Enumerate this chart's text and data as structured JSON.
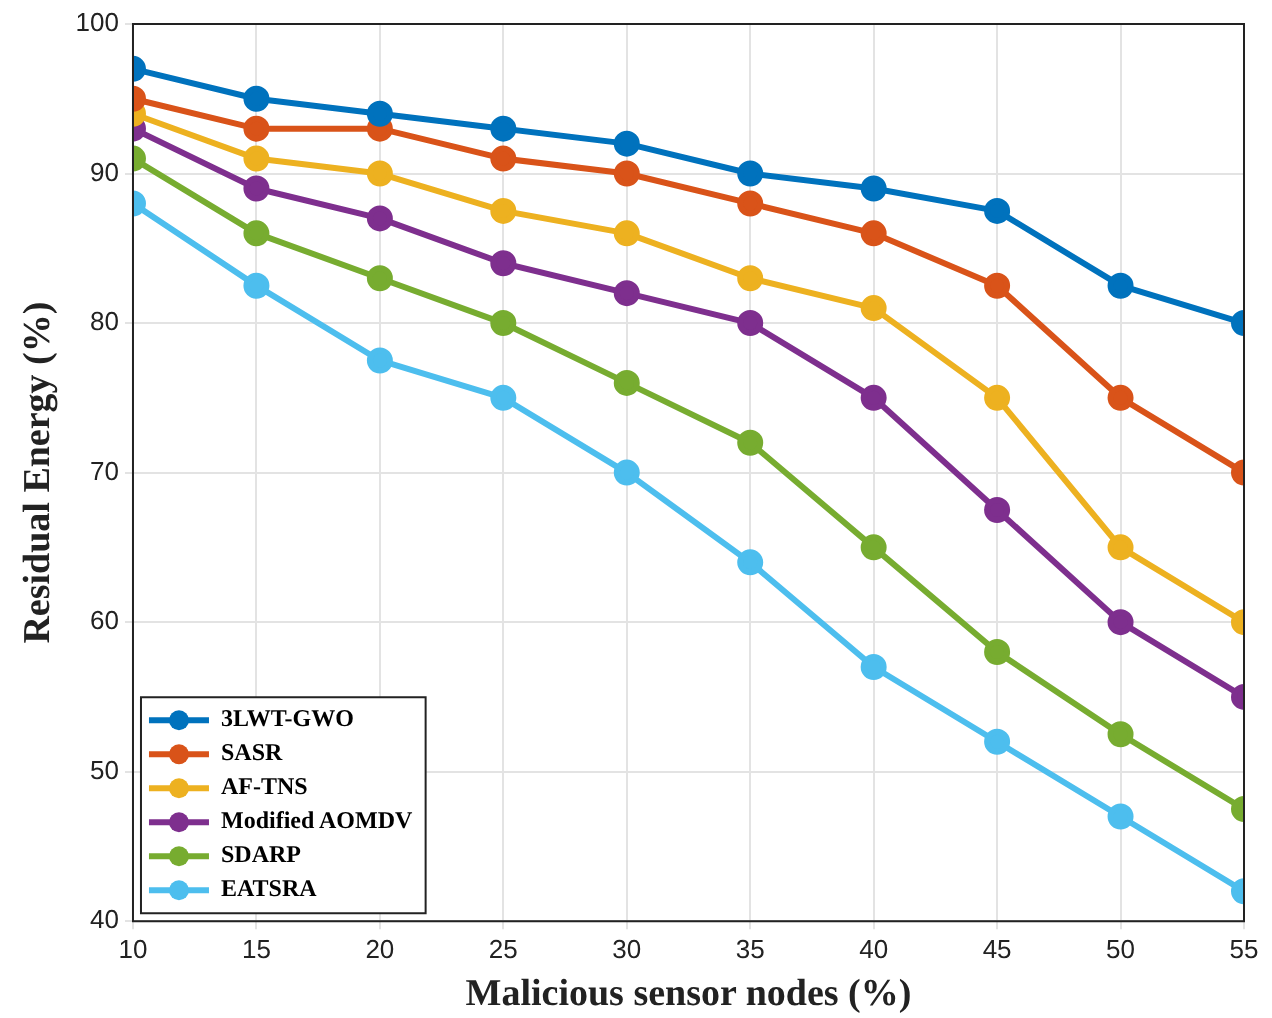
{
  "chart_data": {
    "type": "line",
    "xlabel": "Malicious sensor nodes (%)",
    "ylabel": "Residual Energy (%)",
    "x": [
      10,
      15,
      20,
      25,
      30,
      35,
      40,
      45,
      50,
      55
    ],
    "series": [
      {
        "name": "3LWT-GWO",
        "color": "#0072bd",
        "values": [
          97,
          95,
          94,
          93,
          92,
          90,
          89,
          87.5,
          82.5,
          80
        ]
      },
      {
        "name": "SASR",
        "color": "#d95319",
        "values": [
          95,
          93,
          93,
          91,
          90,
          88,
          86,
          82.5,
          75,
          70
        ]
      },
      {
        "name": "AF-TNS",
        "color": "#edb120",
        "values": [
          94,
          91,
          90,
          87.5,
          86,
          83,
          81,
          75,
          65,
          60
        ]
      },
      {
        "name": "Modified AOMDV",
        "color": "#7e2f8e",
        "values": [
          93,
          89,
          87,
          84,
          82,
          80,
          75,
          67.5,
          60,
          55
        ]
      },
      {
        "name": "SDARP",
        "color": "#77ac30",
        "values": [
          91,
          86,
          83,
          80,
          76,
          72,
          65,
          58,
          52.5,
          47.5
        ]
      },
      {
        "name": "EATSRA",
        "color": "#4dbeee",
        "values": [
          88,
          82.5,
          77.5,
          75,
          70,
          64,
          57,
          52,
          47,
          42
        ]
      }
    ],
    "xlim": [
      10,
      55
    ],
    "xticks": [
      10,
      15,
      20,
      25,
      30,
      35,
      40,
      45,
      50,
      55
    ],
    "ylim": [
      40,
      100
    ],
    "yticks": [
      40,
      50,
      60,
      70,
      80,
      90,
      100
    ],
    "grid": true,
    "legend": "bottom left",
    "marker": "circle",
    "line_style": "solid"
  }
}
